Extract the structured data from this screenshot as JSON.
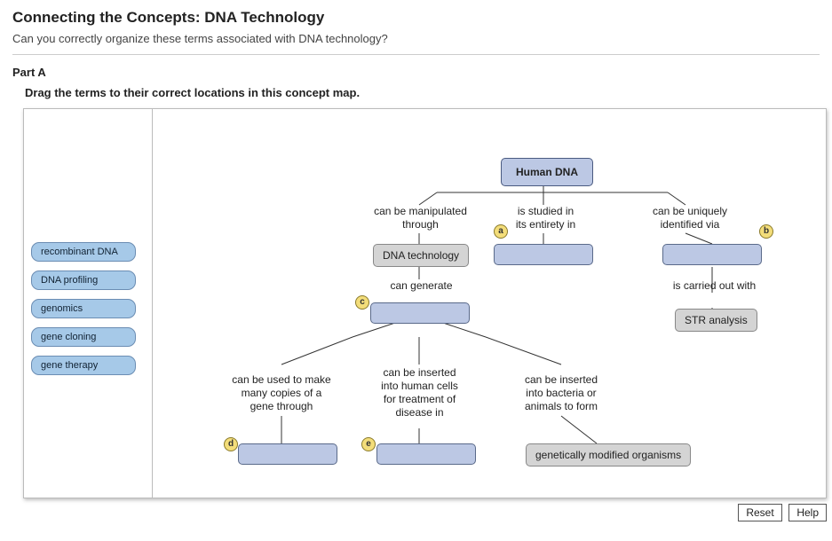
{
  "header": {
    "title": "Connecting the Concepts: DNA Technology",
    "subtitle": "Can you correctly organize these terms associated with DNA technology?"
  },
  "part": {
    "label": "Part A",
    "instructions": "Drag the terms to their correct locations in this concept map."
  },
  "terms": {
    "t1": "recombinant DNA",
    "t2": "DNA profiling",
    "t3": "genomics",
    "t4": "gene cloning",
    "t5": "gene therapy"
  },
  "nodes": {
    "root": "Human DNA",
    "dna_tech": "DNA technology",
    "str": "STR analysis",
    "gmo": "genetically modified organisms"
  },
  "labels": {
    "manipulated": "can be manipulated\nthrough",
    "studied": "is studied in\nits entirety in",
    "uniquely": "can be uniquely\nidentified via",
    "generate": "can generate",
    "carried": "is carried out with",
    "copies": "can be used to make\nmany copies of a\ngene through",
    "inserted_human": "can be inserted\ninto human cells\nfor treatment of\ndisease in",
    "inserted_bact": "can be inserted\ninto bacteria or\nanimals to form"
  },
  "markers": {
    "a": "a",
    "b": "b",
    "c": "c",
    "d": "d",
    "e": "e"
  },
  "buttons": {
    "reset": "Reset",
    "help": "Help"
  },
  "colors": {
    "term_bg": "#a6c9e8",
    "drop_bg": "#bcc8e4",
    "node_bg": "#e4e4e4",
    "marker_bg": "#f3dd7a",
    "line": "#333333"
  }
}
